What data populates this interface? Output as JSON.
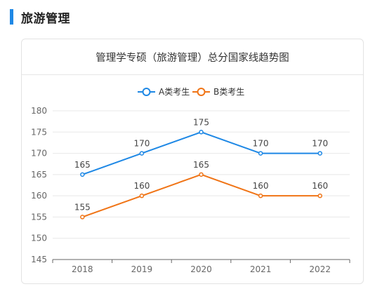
{
  "section": {
    "title": "旅游管理"
  },
  "chart_data": {
    "type": "line",
    "title": "管理学专硕（旅游管理）总分国家线趋势图",
    "x": [
      "2018",
      "2019",
      "2020",
      "2021",
      "2022"
    ],
    "series": [
      {
        "name": "A类考生",
        "color": "#1e88e5",
        "values": [
          165,
          170,
          175,
          170,
          170
        ]
      },
      {
        "name": "B类考生",
        "color": "#f07416",
        "values": [
          155,
          160,
          165,
          160,
          160
        ]
      }
    ],
    "ylim": [
      145,
      180
    ],
    "yticks": [
      145,
      150,
      155,
      160,
      165,
      170,
      175,
      180
    ],
    "grid": true,
    "legend": "top-center",
    "data_labels": true,
    "xlabel": "",
    "ylabel": ""
  }
}
